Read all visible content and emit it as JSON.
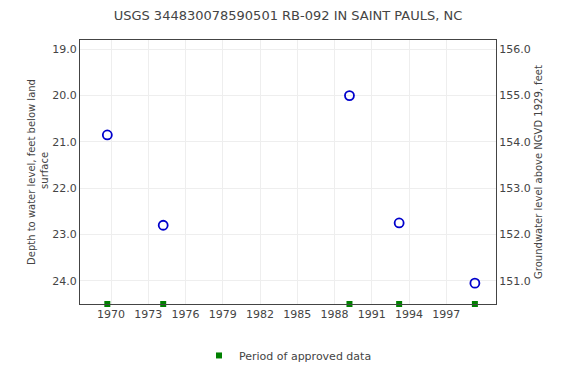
{
  "chart_data": {
    "type": "scatter",
    "title": "USGS 344830078590501 RB-092 IN SAINT PAULS, NC",
    "series": [
      {
        "x": [
          1969.7,
          1974.2,
          1989.2,
          1993.2,
          1999.3
        ],
        "values": [
          20.85,
          22.8,
          20.0,
          22.75,
          24.05
        ],
        "color": "#0000cc",
        "marker": "open circle"
      },
      {
        "name": "Period of approved data",
        "x": [
          1969.7,
          1974.2,
          1989.2,
          1993.2,
          1999.3
        ],
        "color": "#008000",
        "marker": "square"
      }
    ],
    "xlim": [
      1967.5,
      2001.0
    ],
    "xticks": [
      1970,
      1973,
      1976,
      1979,
      1982,
      1985,
      1988,
      1991,
      1994,
      1997
    ],
    "ylim": [
      24.5,
      18.8
    ],
    "yticks": [
      {
        "value": 19.0,
        "label": "19.0"
      },
      {
        "value": 20.0,
        "label": "20.0"
      },
      {
        "value": 21.0,
        "label": "21.0"
      },
      {
        "value": 22.0,
        "label": "22.0"
      },
      {
        "value": 23.0,
        "label": "23.0"
      },
      {
        "value": 24.0,
        "label": "24.0"
      }
    ],
    "y2lim": [
      150.5,
      156.2
    ],
    "y2ticks": [
      {
        "value": 151.0,
        "label": "151.0"
      },
      {
        "value": 152.0,
        "label": "152.0"
      },
      {
        "value": 153.0,
        "label": "153.0"
      },
      {
        "value": 154.0,
        "label": "154.0"
      },
      {
        "value": 155.0,
        "label": "155.0"
      },
      {
        "value": 156.0,
        "label": "156.0"
      }
    ],
    "ylabel": "Depth to water level, feet below land\n surface",
    "y2label": "Groundwater level above NGVD 1929, feet",
    "grid": true,
    "legend": "bottom"
  }
}
